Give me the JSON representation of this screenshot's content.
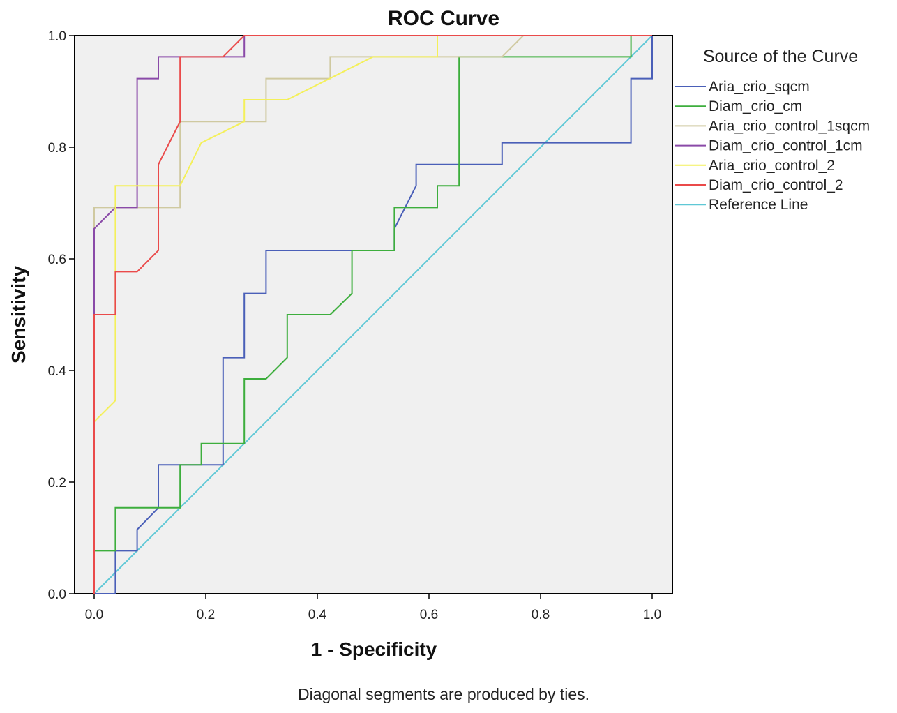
{
  "chart_data": {
    "type": "line",
    "title": "ROC Curve",
    "xlabel": "1 - Specificity",
    "ylabel": "Sensitivity",
    "xlim": [
      0,
      1
    ],
    "ylim": [
      0,
      1
    ],
    "xticks": [
      "0.0",
      "0.2",
      "0.4",
      "0.6",
      "0.8",
      "1.0"
    ],
    "yticks": [
      "0.0",
      "0.2",
      "0.4",
      "0.6",
      "0.8",
      "1.0"
    ],
    "grid": false,
    "legend_title": "Source of the Curve",
    "legend_position": "right",
    "footnote": "Diagonal segments are produced by ties.",
    "series": [
      {
        "name": "Aria_crio_sqcm",
        "color": "#4a5fb8",
        "points": [
          [
            0,
            0
          ],
          [
            0.038,
            0
          ],
          [
            0.038,
            0.077
          ],
          [
            0.077,
            0.077
          ],
          [
            0.077,
            0.115
          ],
          [
            0.115,
            0.154
          ],
          [
            0.115,
            0.231
          ],
          [
            0.231,
            0.231
          ],
          [
            0.231,
            0.423
          ],
          [
            0.269,
            0.423
          ],
          [
            0.269,
            0.538
          ],
          [
            0.308,
            0.538
          ],
          [
            0.308,
            0.615
          ],
          [
            0.538,
            0.615
          ],
          [
            0.538,
            0.654
          ],
          [
            0.577,
            0.731
          ],
          [
            0.577,
            0.769
          ],
          [
            0.731,
            0.769
          ],
          [
            0.731,
            0.808
          ],
          [
            0.962,
            0.808
          ],
          [
            0.962,
            0.923
          ],
          [
            1.0,
            0.923
          ],
          [
            1.0,
            1.0
          ]
        ]
      },
      {
        "name": "Diam_crio_cm",
        "color": "#3dae3d",
        "points": [
          [
            0,
            0
          ],
          [
            0,
            0.077
          ],
          [
            0.038,
            0.077
          ],
          [
            0.038,
            0.154
          ],
          [
            0.154,
            0.154
          ],
          [
            0.154,
            0.231
          ],
          [
            0.192,
            0.231
          ],
          [
            0.192,
            0.269
          ],
          [
            0.269,
            0.269
          ],
          [
            0.269,
            0.385
          ],
          [
            0.308,
            0.385
          ],
          [
            0.346,
            0.423
          ],
          [
            0.346,
            0.5
          ],
          [
            0.423,
            0.5
          ],
          [
            0.462,
            0.538
          ],
          [
            0.462,
            0.615
          ],
          [
            0.538,
            0.615
          ],
          [
            0.538,
            0.692
          ],
          [
            0.615,
            0.692
          ],
          [
            0.615,
            0.731
          ],
          [
            0.654,
            0.731
          ],
          [
            0.654,
            0.962
          ],
          [
            0.962,
            0.962
          ],
          [
            0.962,
            1.0
          ],
          [
            1.0,
            1.0
          ]
        ]
      },
      {
        "name": "Aria_crio_control_1sqcm",
        "color": "#cfc9a0",
        "points": [
          [
            0,
            0
          ],
          [
            0,
            0.692
          ],
          [
            0.154,
            0.692
          ],
          [
            0.154,
            0.846
          ],
          [
            0.308,
            0.846
          ],
          [
            0.308,
            0.923
          ],
          [
            0.423,
            0.923
          ],
          [
            0.423,
            0.962
          ],
          [
            0.731,
            0.962
          ],
          [
            0.769,
            1.0
          ],
          [
            1.0,
            1.0
          ]
        ]
      },
      {
        "name": "Diam_crio_control_1cm",
        "color": "#8a4aa8",
        "points": [
          [
            0,
            0
          ],
          [
            0,
            0.654
          ],
          [
            0.038,
            0.692
          ],
          [
            0.077,
            0.692
          ],
          [
            0.077,
            0.923
          ],
          [
            0.115,
            0.923
          ],
          [
            0.115,
            0.962
          ],
          [
            0.269,
            0.962
          ],
          [
            0.269,
            1.0
          ],
          [
            1.0,
            1.0
          ]
        ]
      },
      {
        "name": "Aria_crio_control_2",
        "color": "#f4f05a",
        "points": [
          [
            0,
            0
          ],
          [
            0,
            0.308
          ],
          [
            0.038,
            0.346
          ],
          [
            0.038,
            0.731
          ],
          [
            0.154,
            0.731
          ],
          [
            0.192,
            0.808
          ],
          [
            0.269,
            0.846
          ],
          [
            0.269,
            0.885
          ],
          [
            0.346,
            0.885
          ],
          [
            0.5,
            0.962
          ],
          [
            0.615,
            0.962
          ],
          [
            0.615,
            1.0
          ],
          [
            1.0,
            1.0
          ]
        ]
      },
      {
        "name": "Diam_crio_control_2",
        "color": "#ea4a4a",
        "points": [
          [
            0,
            0
          ],
          [
            0,
            0.5
          ],
          [
            0.038,
            0.5
          ],
          [
            0.038,
            0.577
          ],
          [
            0.077,
            0.577
          ],
          [
            0.115,
            0.615
          ],
          [
            0.115,
            0.769
          ],
          [
            0.154,
            0.846
          ],
          [
            0.154,
            0.962
          ],
          [
            0.231,
            0.962
          ],
          [
            0.269,
            1.0
          ],
          [
            1.0,
            1.0
          ]
        ]
      },
      {
        "name": "Reference Line",
        "color": "#5fc8d6",
        "points": [
          [
            0,
            0
          ],
          [
            1,
            1
          ]
        ]
      }
    ]
  }
}
